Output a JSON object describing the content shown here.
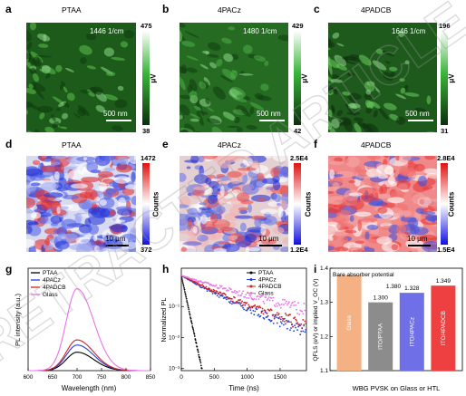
{
  "watermark": "RETRACTED ARTICLE",
  "row1": {
    "panels": [
      {
        "letter": "a",
        "title": "PTAA",
        "overlay": "1446 1/cm",
        "scalebar": "500 nm",
        "cb_max": "475",
        "cb_min": "38",
        "cb_unit": "μV",
        "colors": [
          "#ffffff",
          "#2f9e2f",
          "#0b2d0b"
        ]
      },
      {
        "letter": "b",
        "title": "4PACz",
        "overlay": "1480 1/cm",
        "scalebar": "500 nm",
        "cb_max": "429",
        "cb_min": "42",
        "cb_unit": "μV",
        "colors": [
          "#ffffff",
          "#2f9e2f",
          "#0b2d0b"
        ]
      },
      {
        "letter": "c",
        "title": "4PADCB",
        "overlay": "1646 1/cm",
        "scalebar": "500 nm",
        "cb_max": "196",
        "cb_min": "31",
        "cb_unit": "μV",
        "colors": [
          "#ffffff",
          "#2f9e2f",
          "#0b2d0b"
        ]
      }
    ]
  },
  "row2": {
    "panels": [
      {
        "letter": "d",
        "title": "PTAA",
        "scalebar": "10 μm",
        "cb_max": "1472",
        "cb_min": "372",
        "cb_unit": "Counts"
      },
      {
        "letter": "e",
        "title": "4PACz",
        "scalebar": "10 μm",
        "cb_max": "2.5E4",
        "cb_min": "1.2E4",
        "cb_unit": "Counts"
      },
      {
        "letter": "f",
        "title": "4PADCB",
        "scalebar": "10 μm",
        "cb_max": "2.8E4",
        "cb_min": "1.5E4",
        "cb_unit": "Counts"
      }
    ]
  },
  "chart_data": [
    {
      "panel": "g",
      "type": "line",
      "xlabel": "Wavelength (nm)",
      "ylabel": "PL intensity (a.u.)",
      "xlim": [
        600,
        850
      ],
      "xticks": [
        "600",
        "650",
        "700",
        "750",
        "800",
        "850"
      ],
      "legend": [
        "PTAA",
        "4PACz",
        "4PADCB",
        "Glass"
      ],
      "series": [
        {
          "name": "PTAA",
          "color": "#000000",
          "peak_x": 700,
          "peak_y": 0.18
        },
        {
          "name": "4PACz",
          "color": "#1f3fd6",
          "peak_x": 700,
          "peak_y": 0.25
        },
        {
          "name": "4PADCB",
          "color": "#d62020",
          "peak_x": 700,
          "peak_y": 0.3
        },
        {
          "name": "Glass",
          "color": "#e874e8",
          "peak_x": 700,
          "peak_y": 0.8
        }
      ]
    },
    {
      "panel": "h",
      "type": "scatter",
      "xlabel": "Time (ns)",
      "ylabel": "Normalized PL",
      "xlim": [
        0,
        1900
      ],
      "ylog": true,
      "ylim": [
        0.01,
        1
      ],
      "xticks": [
        "0",
        "500",
        "1000",
        "1500"
      ],
      "yticks": [
        "10⁻¹",
        "10⁻²",
        "10⁻³"
      ],
      "legend": [
        "PTAA",
        "4PACz",
        "4PADCB",
        "Glass"
      ],
      "series": [
        {
          "name": "PTAA",
          "color": "#000000",
          "tau": 45
        },
        {
          "name": "4PACz",
          "color": "#1f3fd6",
          "tau": 620
        },
        {
          "name": "4PADCB",
          "color": "#d62020",
          "tau": 720
        },
        {
          "name": "Glass",
          "color": "#e874e8",
          "tau": 1150
        }
      ]
    },
    {
      "panel": "i",
      "type": "bar",
      "xlabel": "WBG PVSK on Glass or HTL",
      "ylabel": "QFLS (eV) or implied V_OC (V)",
      "ylim": [
        1.1,
        1.4
      ],
      "yticks": [
        "1.1",
        "1.2",
        "1.3",
        "1.4"
      ],
      "categories": [
        "Glass",
        "ITO/PTAA",
        "ITO/4PACz",
        "ITO/4PADCB"
      ],
      "values": [
        1.38,
        1.3,
        1.328,
        1.349
      ],
      "value_labels": [
        "",
        "1.300",
        "1.328",
        "1.349"
      ],
      "colors": [
        "#f4b183",
        "#8c8c8c",
        "#6f6fe8",
        "#ee4040"
      ],
      "annotations": {
        "bare": "Bare absorber potential",
        "bare_value": "1.380"
      }
    }
  ]
}
